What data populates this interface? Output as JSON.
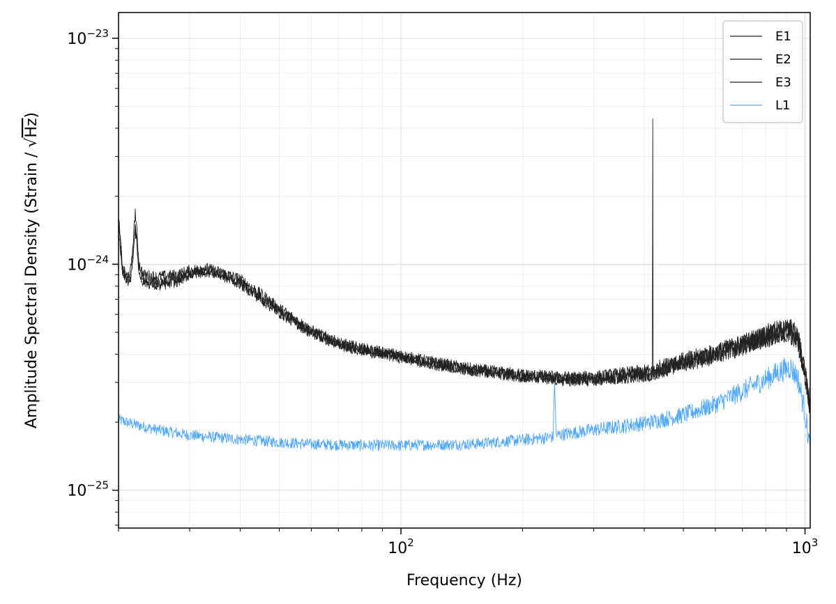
{
  "chart_data": {
    "type": "line",
    "title": "",
    "xlabel": "Frequency (Hz)",
    "ylabel_main": "Amplitude Spectral Density (Strain / ",
    "ylabel_sqrt": "√",
    "ylabel_unit": "Hz",
    "ylabel_close": ")",
    "x_scale": "log",
    "y_scale": "log",
    "xlim": [
      20,
      1030
    ],
    "ylim": [
      6.8e-26,
      1.3e-23
    ],
    "grid": true,
    "legend_position": "top-right",
    "x_major_ticks": [
      {
        "value": 100,
        "base": "10",
        "exp": "2"
      },
      {
        "value": 1000,
        "base": "10",
        "exp": "3"
      }
    ],
    "y_major_ticks": [
      {
        "value": 1e-25,
        "base": "10",
        "exp": "−25"
      },
      {
        "value": 1e-24,
        "base": "10",
        "exp": "−24"
      },
      {
        "value": 1e-23,
        "base": "10",
        "exp": "−23"
      }
    ],
    "series": [
      {
        "name": "E1",
        "color": "#222222",
        "points": [
          [
            20,
            1.6e-24
          ],
          [
            20.5,
            9.5e-25
          ],
          [
            21,
            8.8e-25
          ],
          [
            21.5,
            9.6e-25
          ],
          [
            22,
            1.72e-24
          ],
          [
            22.5,
            1e-24
          ],
          [
            23,
            9e-25
          ],
          [
            25,
            8.8e-25
          ],
          [
            28,
            9e-25
          ],
          [
            30,
            9.4e-25
          ],
          [
            33,
            9.6e-25
          ],
          [
            36,
            9.2e-25
          ],
          [
            40,
            8.6e-25
          ],
          [
            45,
            7.4e-25
          ],
          [
            50,
            6.4e-25
          ],
          [
            60,
            5.1e-25
          ],
          [
            70,
            4.5e-25
          ],
          [
            80,
            4.25e-25
          ],
          [
            100,
            3.95e-25
          ],
          [
            120,
            3.7e-25
          ],
          [
            150,
            3.45e-25
          ],
          [
            200,
            3.25e-25
          ],
          [
            250,
            3.15e-25
          ],
          [
            300,
            3.15e-25
          ],
          [
            350,
            3.25e-25
          ],
          [
            410,
            3.35e-25
          ],
          [
            419,
            3.4e-25
          ],
          [
            420,
            4.4e-24
          ],
          [
            421,
            3.4e-25
          ],
          [
            450,
            3.55e-25
          ],
          [
            500,
            3.75e-25
          ],
          [
            600,
            4.05e-25
          ],
          [
            700,
            4.45e-25
          ],
          [
            800,
            4.85e-25
          ],
          [
            880,
            5.1e-25
          ],
          [
            920,
            5.15e-25
          ],
          [
            960,
            4.7e-25
          ],
          [
            1000,
            3.4e-25
          ],
          [
            1030,
            2.3e-25
          ]
        ]
      },
      {
        "name": "E2",
        "color": "#222222",
        "points": [
          [
            20,
            1.4e-24
          ],
          [
            20.5,
            9.2e-25
          ],
          [
            21,
            8.6e-25
          ],
          [
            21.5,
            9e-25
          ],
          [
            22,
            1.5e-24
          ],
          [
            22.5,
            9.2e-25
          ],
          [
            23,
            8.6e-25
          ],
          [
            25,
            8.2e-25
          ],
          [
            28,
            8.6e-25
          ],
          [
            30,
            9.1e-25
          ],
          [
            33,
            9.4e-25
          ],
          [
            36,
            9e-25
          ],
          [
            40,
            8.3e-25
          ],
          [
            45,
            7.1e-25
          ],
          [
            50,
            6.2e-25
          ],
          [
            60,
            5e-25
          ],
          [
            70,
            4.45e-25
          ],
          [
            80,
            4.2e-25
          ],
          [
            100,
            3.9e-25
          ],
          [
            120,
            3.65e-25
          ],
          [
            150,
            3.4e-25
          ],
          [
            200,
            3.2e-25
          ],
          [
            250,
            3.1e-25
          ],
          [
            300,
            3.1e-25
          ],
          [
            350,
            3.2e-25
          ],
          [
            420,
            3.3e-25
          ],
          [
            450,
            3.5e-25
          ],
          [
            500,
            3.7e-25
          ],
          [
            600,
            4e-25
          ],
          [
            700,
            4.4e-25
          ],
          [
            800,
            4.8e-25
          ],
          [
            880,
            5.05e-25
          ],
          [
            920,
            5.1e-25
          ],
          [
            960,
            4.6e-25
          ],
          [
            1000,
            3.3e-25
          ],
          [
            1030,
            2.25e-25
          ]
        ]
      },
      {
        "name": "E3",
        "color": "#222222",
        "points": [
          [
            20,
            1.5e-24
          ],
          [
            20.5,
            9e-25
          ],
          [
            21,
            8.4e-25
          ],
          [
            21.5,
            8.8e-25
          ],
          [
            22,
            1.45e-24
          ],
          [
            22.5,
            9e-25
          ],
          [
            23,
            8.4e-25
          ],
          [
            25,
            8e-25
          ],
          [
            28,
            8.4e-25
          ],
          [
            30,
            9e-25
          ],
          [
            33,
            9.3e-25
          ],
          [
            36,
            8.9e-25
          ],
          [
            40,
            8.2e-25
          ],
          [
            45,
            7e-25
          ],
          [
            50,
            6.1e-25
          ],
          [
            60,
            4.95e-25
          ],
          [
            70,
            4.4e-25
          ],
          [
            80,
            4.15e-25
          ],
          [
            100,
            3.85e-25
          ],
          [
            120,
            3.6e-25
          ],
          [
            150,
            3.38e-25
          ],
          [
            200,
            3.18e-25
          ],
          [
            250,
            3.08e-25
          ],
          [
            300,
            3.08e-25
          ],
          [
            350,
            3.18e-25
          ],
          [
            420,
            3.28e-25
          ],
          [
            450,
            3.45e-25
          ],
          [
            500,
            3.65e-25
          ],
          [
            600,
            3.95e-25
          ],
          [
            700,
            4.35e-25
          ],
          [
            800,
            4.75e-25
          ],
          [
            880,
            5e-25
          ],
          [
            920,
            5.05e-25
          ],
          [
            960,
            4.55e-25
          ],
          [
            1000,
            3.25e-25
          ],
          [
            1030,
            2.2e-25
          ]
        ]
      },
      {
        "name": "L1",
        "color": "#4da6ff",
        "points": [
          [
            20,
            2.05e-25
          ],
          [
            22,
            1.95e-25
          ],
          [
            25,
            1.85e-25
          ],
          [
            30,
            1.75e-25
          ],
          [
            40,
            1.68e-25
          ],
          [
            50,
            1.63e-25
          ],
          [
            60,
            1.6e-25
          ],
          [
            80,
            1.58e-25
          ],
          [
            100,
            1.58e-25
          ],
          [
            150,
            1.6e-25
          ],
          [
            200,
            1.67e-25
          ],
          [
            238,
            1.72e-25
          ],
          [
            240,
            3.1e-25
          ],
          [
            242,
            1.75e-25
          ],
          [
            300,
            1.85e-25
          ],
          [
            400,
            1.98e-25
          ],
          [
            500,
            2.15e-25
          ],
          [
            600,
            2.4e-25
          ],
          [
            700,
            2.75e-25
          ],
          [
            800,
            3.1e-25
          ],
          [
            880,
            3.4e-25
          ],
          [
            920,
            3.5e-25
          ],
          [
            960,
            3.15e-25
          ],
          [
            1000,
            2.2e-25
          ],
          [
            1030,
            1.5e-25
          ]
        ]
      }
    ]
  }
}
